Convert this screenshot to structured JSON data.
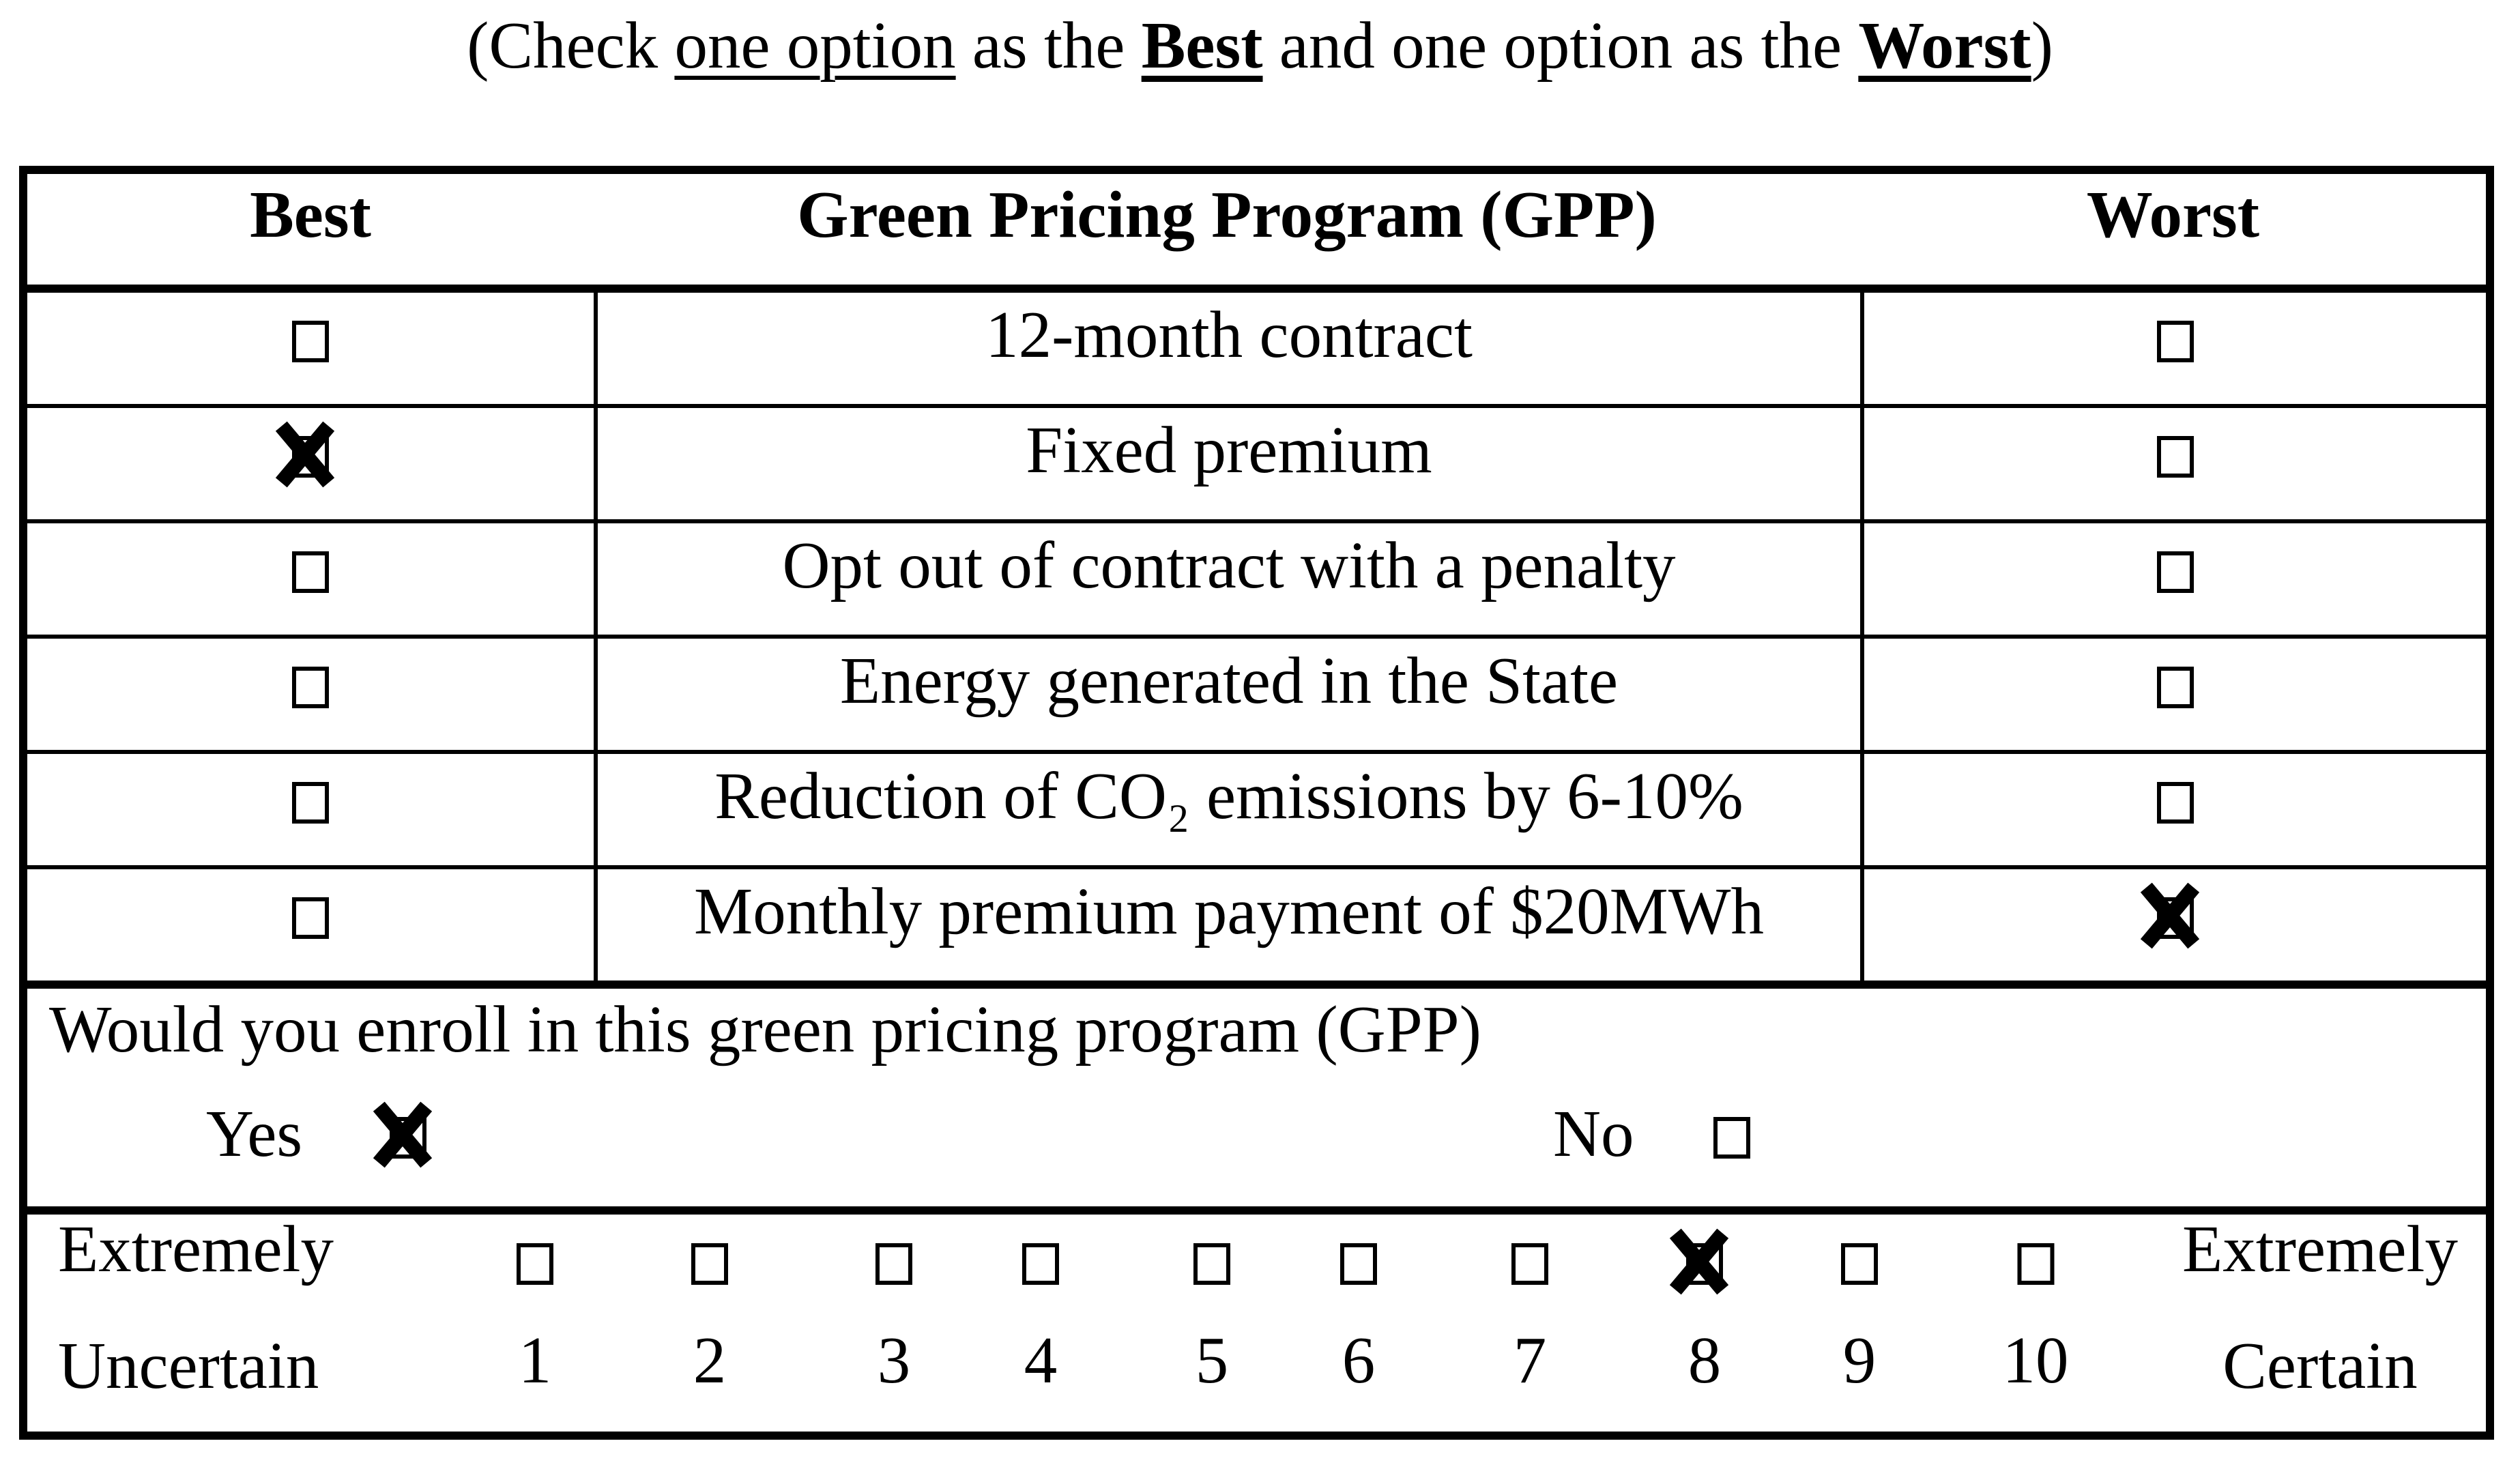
{
  "instruction": {
    "part1": "(Check ",
    "underline": "one option",
    "part2": " as the ",
    "best": "Best",
    "part3": " and one option as the ",
    "worst": "Worst",
    "part4": ")"
  },
  "table": {
    "header": {
      "best": "Best",
      "program": "Green Pricing Program (GPP)",
      "worst": "Worst"
    },
    "rows": [
      {
        "label": "12-month contract",
        "best_checked": false,
        "worst_checked": false
      },
      {
        "label": "Fixed premium",
        "best_checked": true,
        "worst_checked": false
      },
      {
        "label": "Opt out of contract with a penalty",
        "best_checked": false,
        "worst_checked": false
      },
      {
        "label": "Energy generated in the State",
        "best_checked": false,
        "worst_checked": false
      },
      {
        "label": "Reduction of CO₂ emissions by 6-10%",
        "best_checked": false,
        "worst_checked": false
      },
      {
        "label": "Monthly premium payment of $20MWh",
        "best_checked": false,
        "worst_checked": true
      }
    ]
  },
  "enrollment": {
    "question": "Would you enroll in this green pricing program (GPP)",
    "yes": {
      "label": "Yes",
      "checked": true
    },
    "no": {
      "label": "No",
      "checked": false
    }
  },
  "certainty_scale": {
    "left_label_line1": "Extremely",
    "left_label_line2": "Uncertain",
    "right_label_line1": "Extremely",
    "right_label_line2": "Certain",
    "selected_value": 8,
    "options": [
      {
        "value": "1",
        "checked": false
      },
      {
        "value": "2",
        "checked": false
      },
      {
        "value": "3",
        "checked": false
      },
      {
        "value": "4",
        "checked": false
      },
      {
        "value": "5",
        "checked": false
      },
      {
        "value": "6",
        "checked": false
      },
      {
        "value": "7",
        "checked": false
      },
      {
        "value": "8",
        "checked": true
      },
      {
        "value": "9",
        "checked": false
      },
      {
        "value": "10",
        "checked": false
      }
    ]
  },
  "colors": {
    "ink": "#000000",
    "paper": "#ffffff"
  }
}
